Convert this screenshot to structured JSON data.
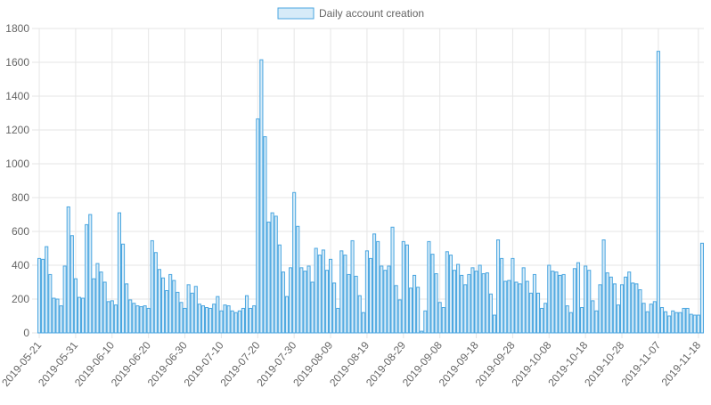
{
  "chart_data": {
    "type": "bar",
    "ylim": [
      0,
      1800
    ],
    "yticks": [
      0,
      200,
      400,
      600,
      800,
      1000,
      1200,
      1400,
      1600,
      1800
    ],
    "xtick_labels": [
      "2019-05-21",
      "2019-05-31",
      "2019-06-10",
      "2019-06-20",
      "2019-06-30",
      "2019-07-10",
      "2019-07-20",
      "2019-07-30",
      "2019-08-09",
      "2019-08-19",
      "2019-08-29",
      "2019-09-08",
      "2019-09-18",
      "2019-09-28",
      "2019-10-08",
      "2019-10-18",
      "2019-10-28",
      "2019-11-07",
      "2019-11-18"
    ],
    "start_date": "2019-05-21",
    "end_date": "2019-11-18",
    "grid": true,
    "legend_position": "top",
    "colors": {
      "bar_fill": "#d6ebf8",
      "bar_stroke": "#4aa6e0",
      "grid": "#e6e6e6",
      "axis_text": "#666666"
    },
    "series": [
      {
        "name": "Daily account creation",
        "values": [
          440,
          435,
          510,
          345,
          205,
          200,
          160,
          395,
          745,
          575,
          320,
          210,
          205,
          640,
          700,
          320,
          410,
          360,
          300,
          185,
          190,
          165,
          710,
          525,
          290,
          195,
          175,
          160,
          155,
          160,
          145,
          545,
          475,
          375,
          325,
          250,
          345,
          310,
          240,
          180,
          145,
          285,
          235,
          275,
          170,
          160,
          150,
          145,
          170,
          215,
          130,
          165,
          160,
          130,
          120,
          130,
          145,
          220,
          145,
          160,
          1265,
          1615,
          1160,
          655,
          710,
          690,
          520,
          360,
          215,
          385,
          830,
          630,
          385,
          365,
          395,
          300,
          500,
          460,
          490,
          370,
          435,
          295,
          145,
          485,
          460,
          345,
          545,
          335,
          220,
          120,
          485,
          440,
          585,
          540,
          395,
          370,
          395,
          625,
          280,
          195,
          540,
          520,
          265,
          340,
          270,
          10,
          130,
          540,
          465,
          350,
          180,
          150,
          480,
          460,
          370,
          405,
          340,
          285,
          345,
          385,
          365,
          400,
          350,
          355,
          230,
          105,
          550,
          440,
          305,
          310,
          440,
          300,
          290,
          385,
          305,
          235,
          345,
          235,
          145,
          175,
          400,
          365,
          360,
          340,
          345,
          160,
          120,
          380,
          415,
          150,
          395,
          370,
          190,
          130,
          285,
          550,
          355,
          330,
          290,
          165,
          285,
          330,
          360,
          295,
          290,
          255,
          175,
          125,
          170,
          185,
          1665,
          150,
          125,
          100,
          130,
          120,
          120,
          145,
          145,
          110,
          105,
          105,
          530
        ]
      }
    ]
  }
}
